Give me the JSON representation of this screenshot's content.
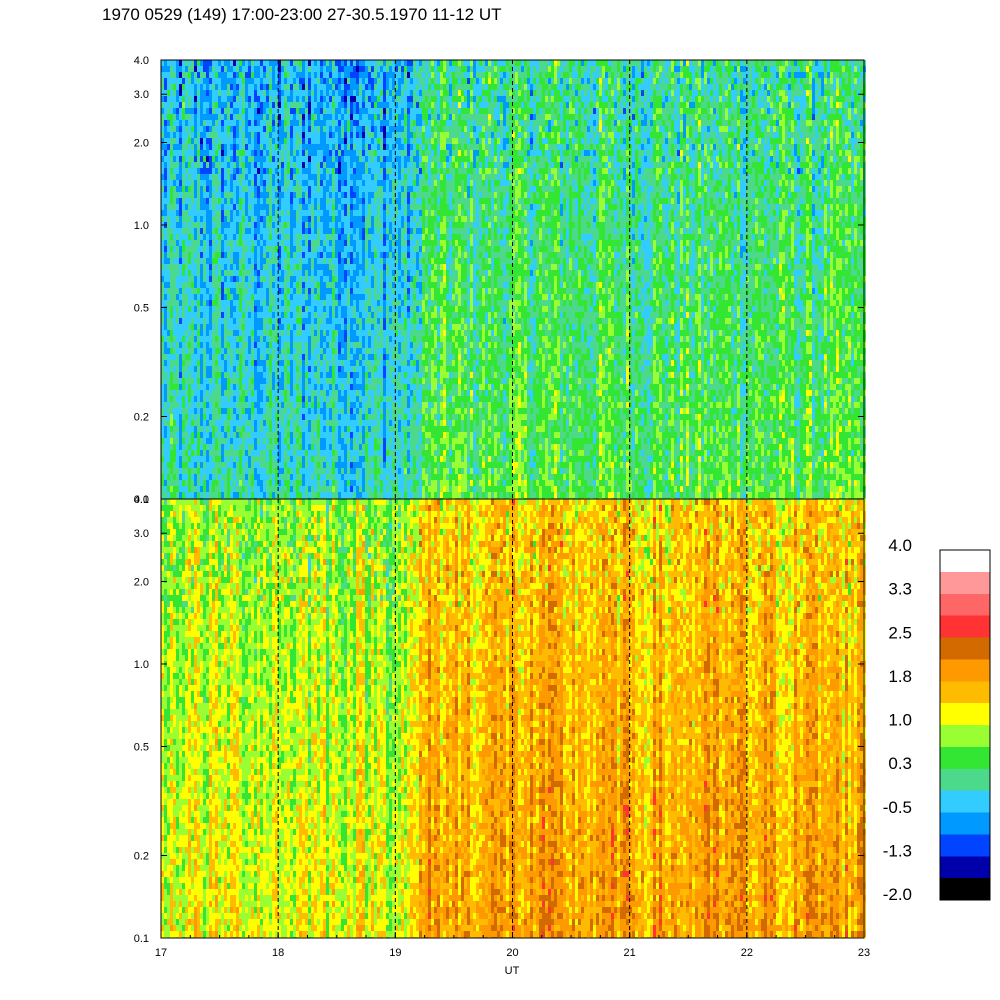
{
  "title": "1970 0529 (149) 17:00-23:00 27-30.5.1970  11-12 UT",
  "chart_data": {
    "type": "heatmap",
    "title": "1970 0529 (149) 17:00-23:00 27-30.5.1970  11-12 UT",
    "xlabel": "UT",
    "ylabel": "",
    "x_range": [
      17,
      23
    ],
    "x_ticks": [
      "17",
      "18",
      "19",
      "20",
      "21",
      "22",
      "23"
    ],
    "x_tick_values": [
      17,
      18,
      19,
      20,
      21,
      22,
      23
    ],
    "dashed_gridlines_x": [
      18,
      19,
      20,
      21,
      22
    ],
    "y_scale": "log",
    "y_range": [
      0.1,
      4.0
    ],
    "y_ticks": [
      "0.1",
      "0.2",
      "0.5",
      "1.0",
      "2.0",
      "3.0",
      "4.0"
    ],
    "y_tick_values": [
      0.1,
      0.2,
      0.5,
      1.0,
      2.0,
      3.0,
      4.0
    ],
    "panels": [
      {
        "name": "upper",
        "dominant_level_low_freq": 0.3,
        "dominant_level_high_freq": -0.5,
        "level_before_19": -0.5,
        "level_after_19": 0.6
      },
      {
        "name": "lower",
        "dominant_level_low_freq": 1.8,
        "dominant_level_high_freq": 1.0,
        "level_before_19": 0.6,
        "level_after_19": 1.9
      }
    ],
    "colorbar": {
      "labels": [
        "4.0",
        "3.3",
        "2.5",
        "1.8",
        "1.0",
        "0.3",
        "-0.5",
        "-1.3",
        "-2.0"
      ],
      "label_values": [
        4.0,
        3.3,
        2.5,
        1.8,
        1.0,
        0.3,
        -0.5,
        -1.3,
        -2.0
      ],
      "colors_top_to_bottom": [
        "#ffffff",
        "#ff9999",
        "#ff6666",
        "#ff3333",
        "#d26a00",
        "#ff9900",
        "#ffbb00",
        "#ffff00",
        "#99ff33",
        "#33e633",
        "#4dd98c",
        "#33ccff",
        "#0099ff",
        "#0044ff",
        "#0000aa",
        "#000000"
      ]
    }
  }
}
